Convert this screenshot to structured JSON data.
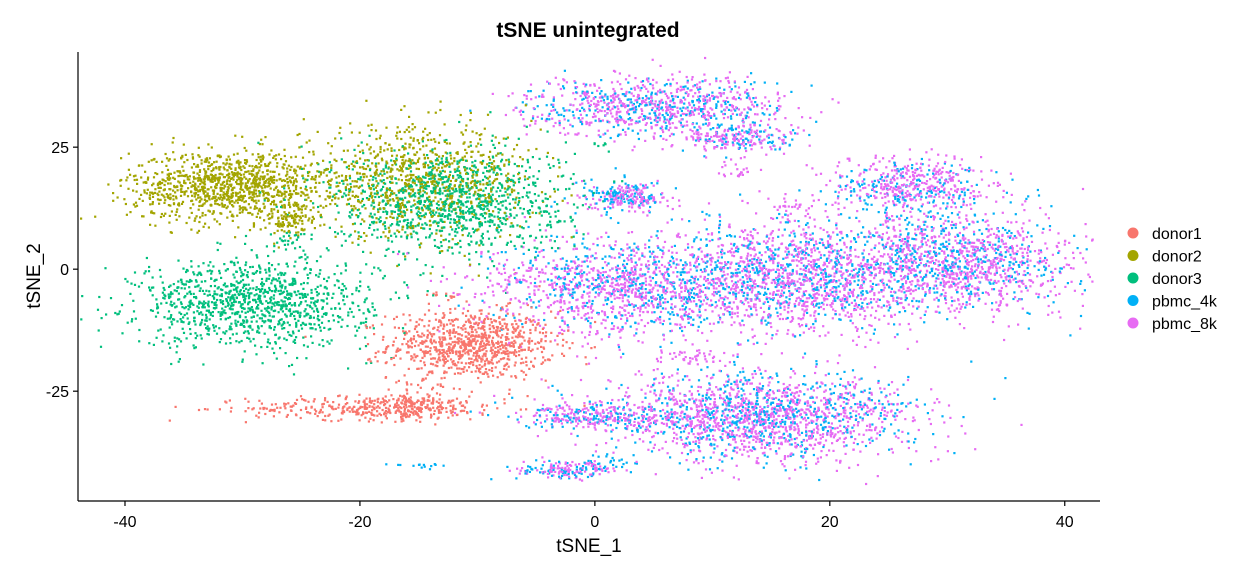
{
  "chart_data": {
    "type": "scatter",
    "title": "tSNE unintegrated",
    "xlabel": "tSNE_1",
    "ylabel": "tSNE_2",
    "xlim": [
      -44,
      43
    ],
    "ylim": [
      -47.5,
      44.5
    ],
    "xticks": [
      -40,
      -20,
      0,
      20,
      40
    ],
    "yticks": [
      -25,
      0,
      25
    ],
    "xtick_labels": [
      "-40",
      "-20",
      "0",
      "20",
      "40"
    ],
    "ytick_labels": [
      "-25",
      "0",
      "25"
    ],
    "grid": false,
    "legend_position": "right",
    "series": [
      {
        "name": "donor1",
        "color": "#F8766D",
        "clusters": [
          {
            "cx": -10.5,
            "cy": -15.5,
            "sx": 3.5,
            "sy": 3.5,
            "n": 900
          },
          {
            "cx": -18.5,
            "cy": -28.5,
            "sx": 5.5,
            "sy": 1.2,
            "n": 380
          },
          {
            "cx": -15.0,
            "cy": -27.0,
            "sx": 1.8,
            "sy": 1.8,
            "n": 100
          },
          {
            "cx": -12.5,
            "cy": -5.5,
            "sx": 0.8,
            "sy": 0.4,
            "n": 12
          }
        ]
      },
      {
        "name": "donor2",
        "color": "#A3A500",
        "clusters": [
          {
            "cx": -31.0,
            "cy": 17.0,
            "sx": 4.3,
            "sy": 3.6,
            "n": 1100
          },
          {
            "cx": -26.0,
            "cy": 10.0,
            "sx": 1.2,
            "sy": 1.5,
            "n": 90
          },
          {
            "cx": -15.0,
            "cy": 18.0,
            "sx": 5.0,
            "sy": 5.5,
            "n": 850
          }
        ]
      },
      {
        "name": "donor3",
        "color": "#00BF7D",
        "clusters": [
          {
            "cx": -29.0,
            "cy": -7.0,
            "sx": 5.0,
            "sy": 4.5,
            "n": 1100
          },
          {
            "cx": -12.5,
            "cy": 14.0,
            "sx": 5.0,
            "sy": 5.5,
            "n": 1100
          },
          {
            "cx": -26.0,
            "cy": 6.0,
            "sx": 1.0,
            "sy": 1.0,
            "n": 25
          },
          {
            "cx": 0.0,
            "cy": 25.5,
            "sx": 0.5,
            "sy": 0.3,
            "n": 6
          }
        ]
      },
      {
        "name": "pbmc_4k",
        "color": "#00B0F6",
        "clusters": [
          {
            "cx": 5.5,
            "cy": 33.0,
            "sx": 5.5,
            "sy": 3.0,
            "n": 320
          },
          {
            "cx": 13.0,
            "cy": 27.0,
            "sx": 2.5,
            "sy": 1.5,
            "n": 80
          },
          {
            "cx": 2.5,
            "cy": 15.0,
            "sx": 1.7,
            "sy": 1.5,
            "n": 110
          },
          {
            "cx": 3.0,
            "cy": -3.0,
            "sx": 5.5,
            "sy": 5.0,
            "n": 420
          },
          {
            "cx": 17.0,
            "cy": -1.0,
            "sx": 5.5,
            "sy": 5.5,
            "n": 520
          },
          {
            "cx": 31.0,
            "cy": 2.0,
            "sx": 5.0,
            "sy": 5.0,
            "n": 420
          },
          {
            "cx": 27.0,
            "cy": 16.0,
            "sx": 3.5,
            "sy": 3.0,
            "n": 170
          },
          {
            "cx": 14.0,
            "cy": -30.0,
            "sx": 6.5,
            "sy": 4.5,
            "n": 600
          },
          {
            "cx": 0.5,
            "cy": -30.5,
            "sx": 3.5,
            "sy": 1.3,
            "n": 110
          },
          {
            "cx": -3.0,
            "cy": -41.5,
            "sx": 2.0,
            "sy": 0.8,
            "n": 60
          },
          {
            "cx": 1.5,
            "cy": -40.0,
            "sx": 1.5,
            "sy": 1.0,
            "n": 35
          },
          {
            "cx": -15.0,
            "cy": -40.5,
            "sx": 1.2,
            "sy": 0.3,
            "n": 14
          }
        ]
      },
      {
        "name": "pbmc_8k",
        "color": "#E76BF3",
        "clusters": [
          {
            "cx": 5.0,
            "cy": 33.5,
            "sx": 5.5,
            "sy": 3.0,
            "n": 600
          },
          {
            "cx": 12.0,
            "cy": 27.0,
            "sx": 2.5,
            "sy": 1.8,
            "n": 160
          },
          {
            "cx": 3.0,
            "cy": 14.5,
            "sx": 1.7,
            "sy": 1.5,
            "n": 150
          },
          {
            "cx": 2.0,
            "cy": -4.0,
            "sx": 6.0,
            "sy": 5.0,
            "n": 850
          },
          {
            "cx": 17.0,
            "cy": -2.0,
            "sx": 5.8,
            "sy": 5.8,
            "n": 1050
          },
          {
            "cx": 31.0,
            "cy": 1.0,
            "sx": 5.0,
            "sy": 5.0,
            "n": 850
          },
          {
            "cx": 27.0,
            "cy": 17.0,
            "sx": 3.5,
            "sy": 3.0,
            "n": 380
          },
          {
            "cx": 14.5,
            "cy": -30.5,
            "sx": 6.5,
            "sy": 4.5,
            "n": 1200
          },
          {
            "cx": 0.5,
            "cy": -30.0,
            "sx": 3.5,
            "sy": 1.3,
            "n": 200
          },
          {
            "cx": -2.5,
            "cy": -41.0,
            "sx": 2.0,
            "sy": 0.8,
            "n": 100
          },
          {
            "cx": 8.0,
            "cy": -18.0,
            "sx": 1.5,
            "sy": 0.8,
            "n": 40
          },
          {
            "cx": 12.0,
            "cy": 20.0,
            "sx": 1.0,
            "sy": 0.7,
            "n": 20
          },
          {
            "cx": 17.0,
            "cy": 13.0,
            "sx": 1.2,
            "sy": 0.8,
            "n": 25
          }
        ]
      }
    ]
  }
}
